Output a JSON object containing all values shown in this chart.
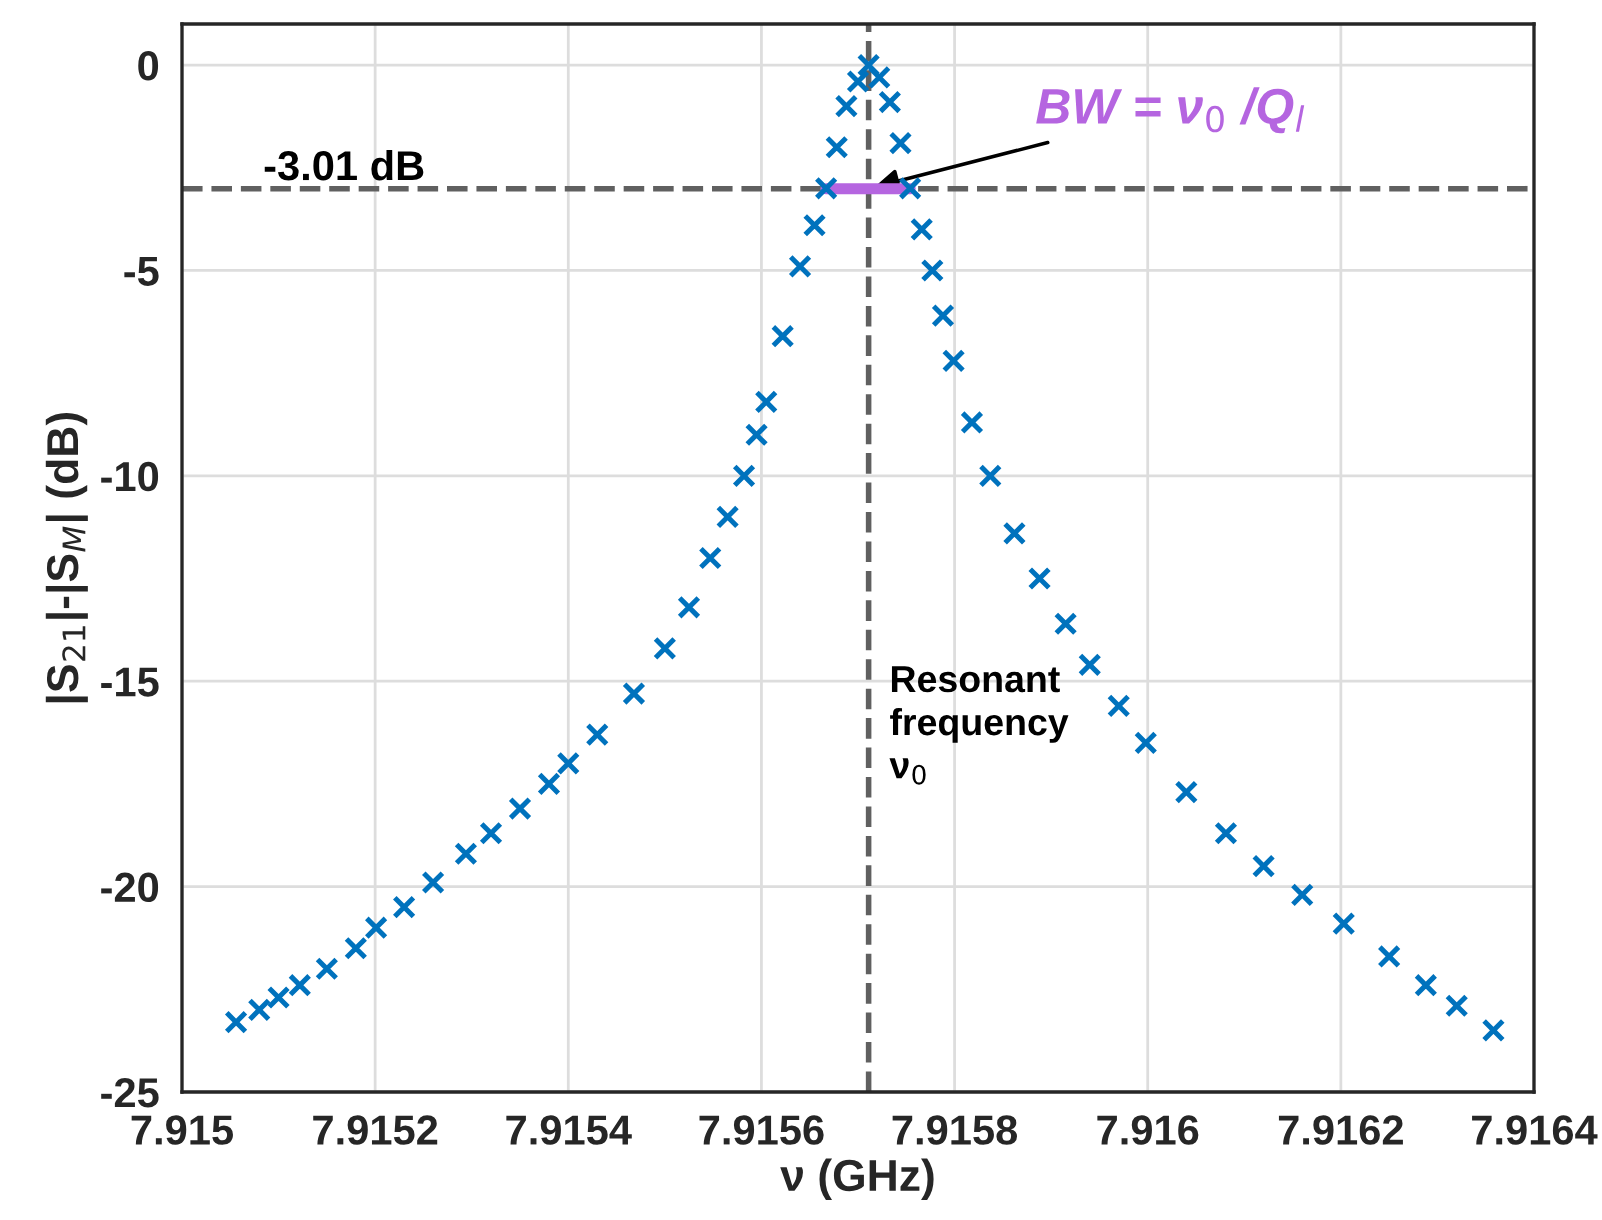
{
  "chart_data": {
    "type": "scatter",
    "xlabel": "ν (GHz)",
    "ylabel": "|S$_{21}$|-|S$_{M}$| (dB)",
    "xlim": [
      7.915,
      7.9164
    ],
    "xticks": [
      7.915,
      7.9152,
      7.9154,
      7.9156,
      7.9158,
      7.916,
      7.9162,
      7.9164
    ],
    "ylim": [
      -25,
      1
    ],
    "yticks": [
      -25,
      -20,
      -15,
      -10,
      -5,
      0
    ],
    "grid": true,
    "series": [
      {
        "marker": "cross",
        "color": "#0072bd",
        "x": [
          7.915056,
          7.91508,
          7.9151,
          7.915122,
          7.91515,
          7.91518,
          7.915201,
          7.91523,
          7.91526,
          7.915294,
          7.91532,
          7.91535,
          7.91538,
          7.9154,
          7.91543,
          7.915468,
          7.9155,
          7.915525,
          7.915547,
          7.915565,
          7.915582,
          7.915595,
          7.915605,
          7.915622,
          7.91564,
          7.915655,
          7.915667,
          7.915678,
          7.915688,
          7.9157,
          7.915711,
          7.915722,
          7.915733,
          7.915744,
          7.915754,
          7.915766,
          7.915777,
          7.915788,
          7.915799,
          7.915818,
          7.915837,
          7.915862,
          7.915888,
          7.915915,
          7.91594,
          7.91597,
          7.915998,
          7.91604,
          7.916081,
          7.91612,
          7.91616,
          7.916203,
          7.91625,
          7.916288,
          7.91632,
          7.916358
        ],
        "values": [
          -23.3,
          -23.0,
          -22.7,
          -22.4,
          -22.0,
          -21.5,
          -21.0,
          -20.5,
          -19.9,
          -19.2,
          -18.7,
          -18.1,
          -17.5,
          -17.0,
          -16.3,
          -15.3,
          -14.2,
          -13.2,
          -12.0,
          -11.0,
          -10.0,
          -9.0,
          -8.2,
          -6.6,
          -4.9,
          -3.9,
          -3.0,
          -2.0,
          -1.0,
          -0.4,
          0.0,
          -0.3,
          -0.9,
          -1.9,
          -3.0,
          -4.0,
          -5.0,
          -6.1,
          -7.2,
          -8.7,
          -10.0,
          -11.4,
          -12.5,
          -13.6,
          -14.6,
          -15.6,
          -16.5,
          -17.7,
          -18.7,
          -19.5,
          -20.2,
          -20.9,
          -21.7,
          -22.4,
          -22.9,
          -23.5
        ]
      },
      {
        "type": "line",
        "marker": "none",
        "color": "#b565e0",
        "x": [
          7.915667,
          7.915754
        ],
        "values": [
          -3.01,
          -3.01
        ]
      }
    ],
    "ref_lines": [
      {
        "axis": "y",
        "value": -3.01,
        "label": "-3.01 dB",
        "color": "#606060",
        "line_style": "dashed"
      },
      {
        "axis": "x",
        "value": 7.915711,
        "label": "Resonant\nfrequency\nν$_{0}$",
        "color": "#606060",
        "line_style": "dashed"
      }
    ],
    "annotations": [
      {
        "text": "BW = ν$_{0}$ /Q$_{l}$",
        "x": 7.915711,
        "y": -3.01
      }
    ]
  }
}
